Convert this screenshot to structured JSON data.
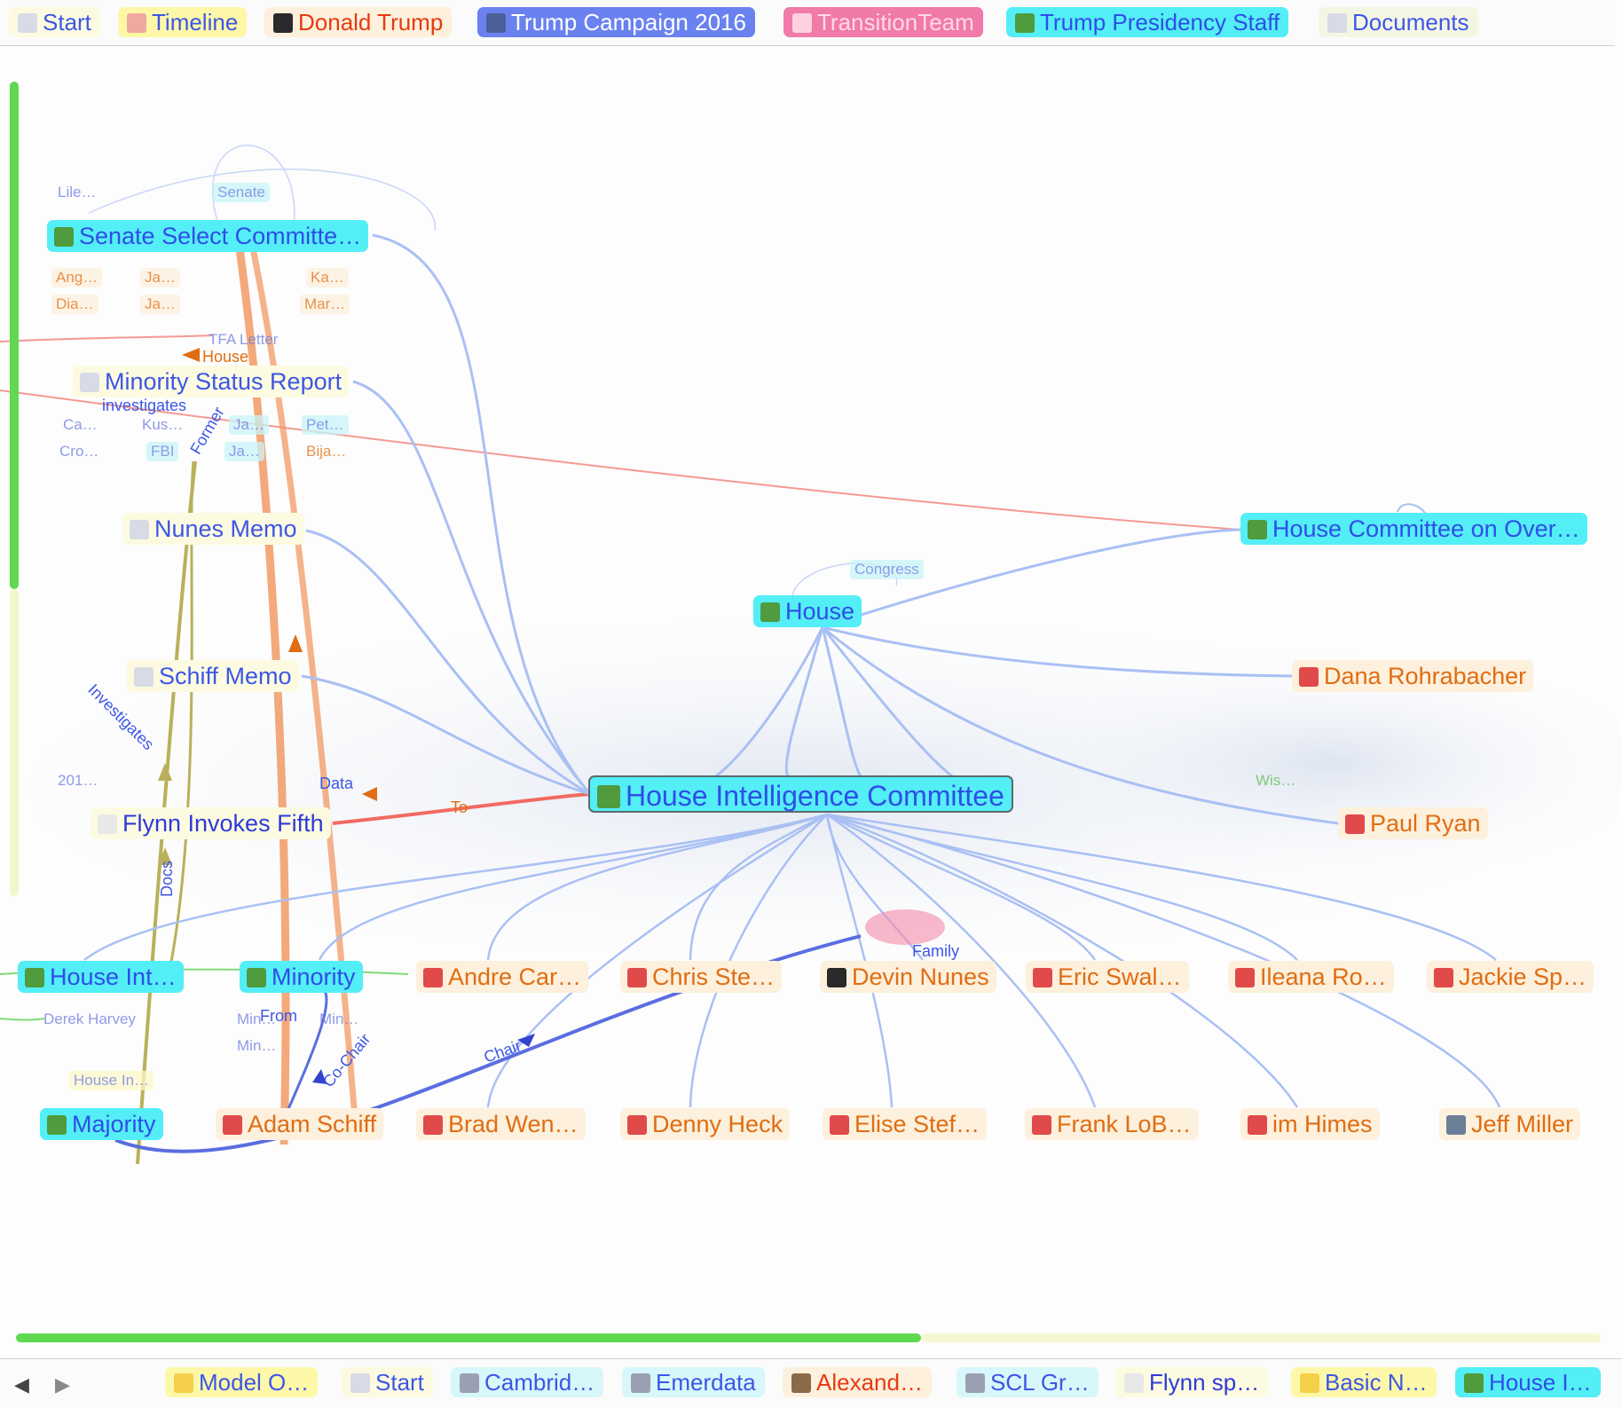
{
  "top_tabs": [
    {
      "label": "Start",
      "color": "#3d56e6",
      "bg": "#fcfbe1",
      "icon": "document-icon"
    },
    {
      "label": "Timeline",
      "color": "#3d56e6",
      "bg": "#fdf8a8",
      "icon": "calendar-icon"
    },
    {
      "label": "Donald Trump",
      "color": "#e63a10",
      "bg": "#fdf0dc",
      "icon": "person-icon"
    },
    {
      "label": "Trump Campaign 2016",
      "color": "#ffffff",
      "bg": "#6a82f0",
      "icon": "group-icon"
    },
    {
      "label": "TransitionTeam",
      "color": "#ffd9e6",
      "bg": "#f07aa8",
      "icon": "transition-icon"
    },
    {
      "label": "Trump Presidency Staff",
      "color": "#2e4ee8",
      "bg": "#54eef6",
      "icon": "group-icon"
    },
    {
      "label": "Documents",
      "color": "#3d56e6",
      "bg": "#f4f6e4",
      "icon": "document-icon"
    }
  ],
  "bottom_tabs": [
    {
      "label": "Model O…",
      "color": "#3d56e6",
      "bg": "#fdf8a8",
      "icon": "bulb-icon"
    },
    {
      "label": "Start",
      "color": "#3d56e6",
      "bg": "#fcfbe1",
      "icon": "document-icon"
    },
    {
      "label": "Cambrid…",
      "color": "#3d56e6",
      "bg": "#d7f7fa",
      "icon": "calendar-icon"
    },
    {
      "label": "Emerdata",
      "color": "#3d56e6",
      "bg": "#d7f7fa",
      "icon": "building-icon"
    },
    {
      "label": "Alexand…",
      "color": "#e63a10",
      "bg": "#fdf0dc",
      "icon": "person-icon"
    },
    {
      "label": "SCL Gr…",
      "color": "#3d56e6",
      "bg": "#d7f7fa",
      "icon": "building-icon"
    },
    {
      "label": "Flynn sp…",
      "color": "#2e3ad8",
      "bg": "#fcfbe1",
      "icon": "calendar-icon"
    },
    {
      "label": "Basic N…",
      "color": "#3d56e6",
      "bg": "#fdf8a8",
      "icon": "bulb-icon"
    },
    {
      "label": "House I…",
      "color": "#2e4ee8",
      "bg": "#54eef6",
      "icon": "group-icon"
    }
  ],
  "nav": {
    "back": "◀",
    "forward": "▶"
  },
  "graph": {
    "main_node": "House Intelligence Committee",
    "nodes": {
      "senate_select": "Senate Select Committe…",
      "minority_report": "Minority Status Report",
      "nunes_memo": "Nunes Memo",
      "schiff_memo": "Schiff Memo",
      "flynn_fifth": "Flynn Invokes Fifth",
      "house": "House",
      "house_oversight": "House Committee on Over…",
      "rohrabacher": "Dana Rohrabacher",
      "ryan": "Paul Ryan",
      "house_int_left": "House Int…",
      "minority": "Minority",
      "majority": "Majority",
      "adam_schiff": "Adam Schiff"
    },
    "members_row1": [
      "Andre Car…",
      "Chris Ste…",
      "Devin Nunes",
      "Eric Swal…",
      "Ileana Ro…",
      "Jackie Sp…"
    ],
    "members_row2": [
      "Brad Wen…",
      "Denny Heck",
      "Elise Stef…",
      "Frank LoB…",
      "im Himes",
      "Jeff Miller"
    ],
    "small_labels": {
      "lile": "Lile…",
      "senate": "Senate",
      "tfa_letter": "TFA Letter",
      "congress": "Congress",
      "wis": "Wis…",
      "year_201": "201…",
      "derek_harvey": "Derek Harvey",
      "house_in": "House In…",
      "ang": "Ang…",
      "ja1": "Ja…",
      "ka": "Ka…",
      "dia": "Dia…",
      "ja2": "Ja…",
      "mar": "Mar…",
      "ca": "Ca…",
      "kus": "Kus…",
      "ja3": "Ja…",
      "pet": "Pet…",
      "cro": "Cro…",
      "fbi": "FBI",
      "ja4": "Ja…",
      "bija": "Bija…",
      "min1": "Min…",
      "min2": "Min…",
      "min3": "Min…"
    },
    "edge_labels": {
      "house": "House",
      "investigates": "investigates",
      "investigates2": "Investigates",
      "data": "Data",
      "to": "To",
      "docs": "Docs",
      "from": "From",
      "co_chair": "Co-Chair",
      "chair": "Chair",
      "family": "Family",
      "former": "Former"
    }
  }
}
